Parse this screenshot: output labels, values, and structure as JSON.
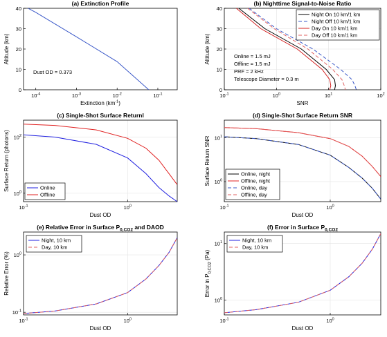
{
  "figure_id": "figure",
  "chart_data": [
    {
      "id": "a",
      "type": "line",
      "title": "(a) Extinction Profile",
      "xlabel": "Extinction (km",
      "xlabel_sup": "-1",
      "xlabel_tail": ")",
      "ylabel": "Altitude (km)",
      "xscale": "log",
      "xlim": [
        5e-05,
        0.3
      ],
      "yscale": "linear",
      "ylim": [
        0,
        40
      ],
      "grid": false,
      "x_ticks": [
        0.0001,
        0.001,
        0.01,
        0.1
      ],
      "x_tick_labels": [
        {
          "base": "10",
          "exp": "-4"
        },
        {
          "base": "10",
          "exp": "-3"
        },
        {
          "base": "10",
          "exp": "-2"
        },
        {
          "base": "10",
          "exp": "-1"
        }
      ],
      "y_ticks": [
        0,
        10,
        20,
        30,
        40
      ],
      "y_tick_labels": [
        "0",
        "10",
        "20",
        "30",
        "40"
      ],
      "annotations": [
        "Dust OD = 0.373"
      ],
      "series": [
        {
          "color": "#3a58c8",
          "dash": "",
          "x": [
            6.5e-05,
            0.0001,
            0.001,
            0.01,
            0.06
          ],
          "y": [
            40,
            38.0,
            26.0,
            13.8,
            0
          ]
        }
      ]
    },
    {
      "id": "b",
      "type": "line",
      "title": "(b) Nighttime Signal-to-Noise Ratio",
      "xlabel": "SNR",
      "ylabel": "Altitude (km)",
      "xscale": "log",
      "xlim": [
        0.1,
        100
      ],
      "yscale": "linear",
      "ylim": [
        0,
        40
      ],
      "grid": true,
      "x_ticks": [
        0.1,
        1,
        10,
        100
      ],
      "x_tick_labels": [
        {
          "base": "10",
          "exp": "-1"
        },
        {
          "base": "10",
          "exp": "0"
        },
        {
          "base": "10",
          "exp": "1"
        },
        {
          "base": "10",
          "exp": "2"
        }
      ],
      "y_ticks": [
        0,
        10,
        20,
        30,
        40
      ],
      "y_tick_labels": [
        "0",
        "10",
        "20",
        "30",
        "40"
      ],
      "legend": "top-right",
      "annotations": [
        "Online = 1.5 mJ",
        "Offline = 1.5 mJ",
        "PRF = 2 kHz",
        "Telescope Diameter = 0.3 m"
      ],
      "series": [
        {
          "name": "Night On  10 km/1 km",
          "color": "#000000",
          "dash": "",
          "x": [
            0.19,
            0.6,
            3.0,
            9.0,
            13.0,
            13.5,
            13.0
          ],
          "y": [
            40,
            30,
            20,
            10,
            5,
            2,
            0
          ]
        },
        {
          "name": "Night Off  10 km/1 km",
          "color": "#3a58c8",
          "dash": "5,3",
          "x": [
            0.3,
            1.0,
            5.0,
            17.0,
            28.0,
            32.0,
            34.0
          ],
          "y": [
            40,
            30,
            20,
            10,
            5,
            2,
            0
          ]
        },
        {
          "name": "Day On  10 km/1 km",
          "color": "#d42020",
          "dash": "",
          "x": [
            0.17,
            0.5,
            2.5,
            7.5,
            10.5,
            11.0,
            10.5
          ],
          "y": [
            40,
            30,
            20,
            10,
            5,
            2,
            0
          ]
        },
        {
          "name": "Day Off  10 km/1 km",
          "color": "#e06060",
          "dash": "5,3",
          "x": [
            0.28,
            0.9,
            4.0,
            12.0,
            18.0,
            20.0,
            21.0
          ],
          "y": [
            40,
            30,
            20,
            10,
            5,
            2,
            0
          ]
        }
      ]
    },
    {
      "id": "c",
      "type": "line",
      "title": "(c) Single-Shot Surface Returnl",
      "xlabel": "Dust OD",
      "ylabel": "Surface Return (photons)",
      "xscale": "log",
      "xlim": [
        0.1,
        3
      ],
      "yscale": "log",
      "ylim": [
        0.5,
        400
      ],
      "grid": true,
      "x_ticks": [
        0.1,
        1
      ],
      "x_tick_labels": [
        {
          "base": "10",
          "exp": "-1"
        },
        {
          "base": "10",
          "exp": "0"
        }
      ],
      "y_ticks": [
        1,
        100
      ],
      "y_tick_labels": [
        {
          "base": "10",
          "exp": "0"
        },
        {
          "base": "10",
          "exp": "2"
        }
      ],
      "legend": "bottom-left",
      "series": [
        {
          "name": "Online",
          "color": "#2020e0",
          "dash": "",
          "x": [
            0.1,
            0.2,
            0.5,
            1.0,
            1.5,
            2.0,
            2.5,
            3.0
          ],
          "y": [
            120,
            100,
            55,
            18,
            5.0,
            1.6,
            0.8,
            0.5
          ]
        },
        {
          "name": "Offline",
          "color": "#e02020",
          "dash": "",
          "x": [
            0.1,
            0.2,
            0.5,
            1.0,
            1.5,
            2.0,
            2.5,
            3.0
          ],
          "y": [
            290,
            260,
            180,
            90,
            40,
            15,
            5.0,
            2.0
          ]
        }
      ]
    },
    {
      "id": "d",
      "type": "line",
      "title": "(d) Single-Shot Surface Return SNR",
      "xlabel": "Dust OD",
      "ylabel": "Surface Return SNR",
      "xscale": "log",
      "xlim": [
        0.1,
        3
      ],
      "yscale": "log",
      "ylim": [
        0.35,
        25
      ],
      "grid": true,
      "x_ticks": [
        0.1,
        1
      ],
      "x_tick_labels": [
        {
          "base": "10",
          "exp": "-1"
        },
        {
          "base": "10",
          "exp": "0"
        }
      ],
      "y_ticks": [
        1,
        10
      ],
      "y_tick_labels": [
        {
          "base": "10",
          "exp": "0"
        },
        {
          "base": "10",
          "exp": "1"
        }
      ],
      "legend": "bottom-left",
      "series": [
        {
          "name": "Online, night",
          "color": "#000000",
          "dash": "",
          "x": [
            0.1,
            0.2,
            0.5,
            1.0,
            1.5,
            2.0,
            2.5,
            3.0
          ],
          "y": [
            10.5,
            9.5,
            7.0,
            4.0,
            2.1,
            1.2,
            0.7,
            0.4
          ]
        },
        {
          "name": "Offline, night",
          "color": "#e02020",
          "dash": "",
          "x": [
            0.1,
            0.2,
            0.5,
            1.0,
            1.5,
            2.0,
            2.5,
            3.0
          ],
          "y": [
            17,
            16,
            13,
            9.5,
            6.3,
            3.8,
            2.2,
            1.3
          ]
        },
        {
          "name": "Online, day",
          "color": "#3a58c8",
          "dash": "5,3",
          "x": [
            0.1,
            0.2,
            0.5,
            1.0,
            1.5,
            2.0,
            2.5,
            3.0
          ],
          "y": [
            10.5,
            9.5,
            7.0,
            4.0,
            2.1,
            1.2,
            0.7,
            0.4
          ]
        },
        {
          "name": "Offline, day",
          "color": "#e06060",
          "dash": "5,3",
          "x": [
            0.1,
            0.2,
            0.5,
            1.0,
            1.5,
            2.0,
            2.5,
            3.0
          ],
          "y": [
            17,
            16,
            13,
            9.5,
            6.3,
            3.8,
            2.2,
            1.3
          ]
        }
      ]
    },
    {
      "id": "e",
      "type": "line",
      "title": "(e) Relative Error in Surface P",
      "title_sub": "0,CO2",
      "title_tail": " and DAOD",
      "xlabel": "Dust OD",
      "ylabel": "Relative Error (%)",
      "xscale": "log",
      "xlim": [
        0.1,
        3
      ],
      "yscale": "log",
      "ylim": [
        0.09,
        2.5
      ],
      "grid": true,
      "x_ticks": [
        0.1,
        1
      ],
      "x_tick_labels": [
        {
          "base": "10",
          "exp": "-1"
        },
        {
          "base": "10",
          "exp": "0"
        }
      ],
      "y_ticks": [
        0.1,
        1
      ],
      "y_tick_labels": [
        {
          "base": "10",
          "exp": "-1"
        },
        {
          "base": "10",
          "exp": "0"
        }
      ],
      "legend": "top-left",
      "series": [
        {
          "name": "Night, 10 km",
          "color": "#2020e0",
          "dash": "",
          "x": [
            0.1,
            0.2,
            0.5,
            1.0,
            1.5,
            2.0,
            2.5,
            3.0
          ],
          "y": [
            0.095,
            0.105,
            0.14,
            0.22,
            0.38,
            0.65,
            1.1,
            2.0
          ]
        },
        {
          "name": "Day, 10 km",
          "color": "#e06060",
          "dash": "5,3",
          "x": [
            0.1,
            0.2,
            0.5,
            1.0,
            1.5,
            2.0,
            2.5,
            3.0
          ],
          "y": [
            0.095,
            0.105,
            0.14,
            0.22,
            0.38,
            0.65,
            1.1,
            2.0
          ]
        }
      ]
    },
    {
      "id": "f",
      "type": "line",
      "title": "(f) Error in Surface P",
      "title_sub": "0,CO2",
      "title_tail": "",
      "xlabel": "Dust OD",
      "ylabel": "Error in P",
      "ylabel_sub": "0,CO2",
      "ylabel_tail": " (Pa)",
      "xscale": "log",
      "xlim": [
        0.1,
        3
      ],
      "yscale": "log",
      "ylim": [
        0.55,
        16
      ],
      "grid": true,
      "x_ticks": [
        0.1,
        1
      ],
      "x_tick_labels": [
        {
          "base": "10",
          "exp": "-1"
        },
        {
          "base": "10",
          "exp": "0"
        }
      ],
      "y_ticks": [
        1,
        10
      ],
      "y_tick_labels": [
        {
          "base": "10",
          "exp": "0"
        },
        {
          "base": "10",
          "exp": "1"
        }
      ],
      "legend": "top-left",
      "series": [
        {
          "name": "Night, 10 km",
          "color": "#2020e0",
          "dash": "",
          "x": [
            0.1,
            0.2,
            0.5,
            1.0,
            1.5,
            2.0,
            2.5,
            3.0
          ],
          "y": [
            0.6,
            0.68,
            0.92,
            1.5,
            2.6,
            4.5,
            8.0,
            15.0
          ]
        },
        {
          "name": "Day, 10 km",
          "color": "#e06060",
          "dash": "5,3",
          "x": [
            0.1,
            0.2,
            0.5,
            1.0,
            1.5,
            2.0,
            2.5,
            3.0
          ],
          "y": [
            0.6,
            0.68,
            0.92,
            1.5,
            2.6,
            4.5,
            8.0,
            15.0
          ]
        }
      ]
    }
  ]
}
